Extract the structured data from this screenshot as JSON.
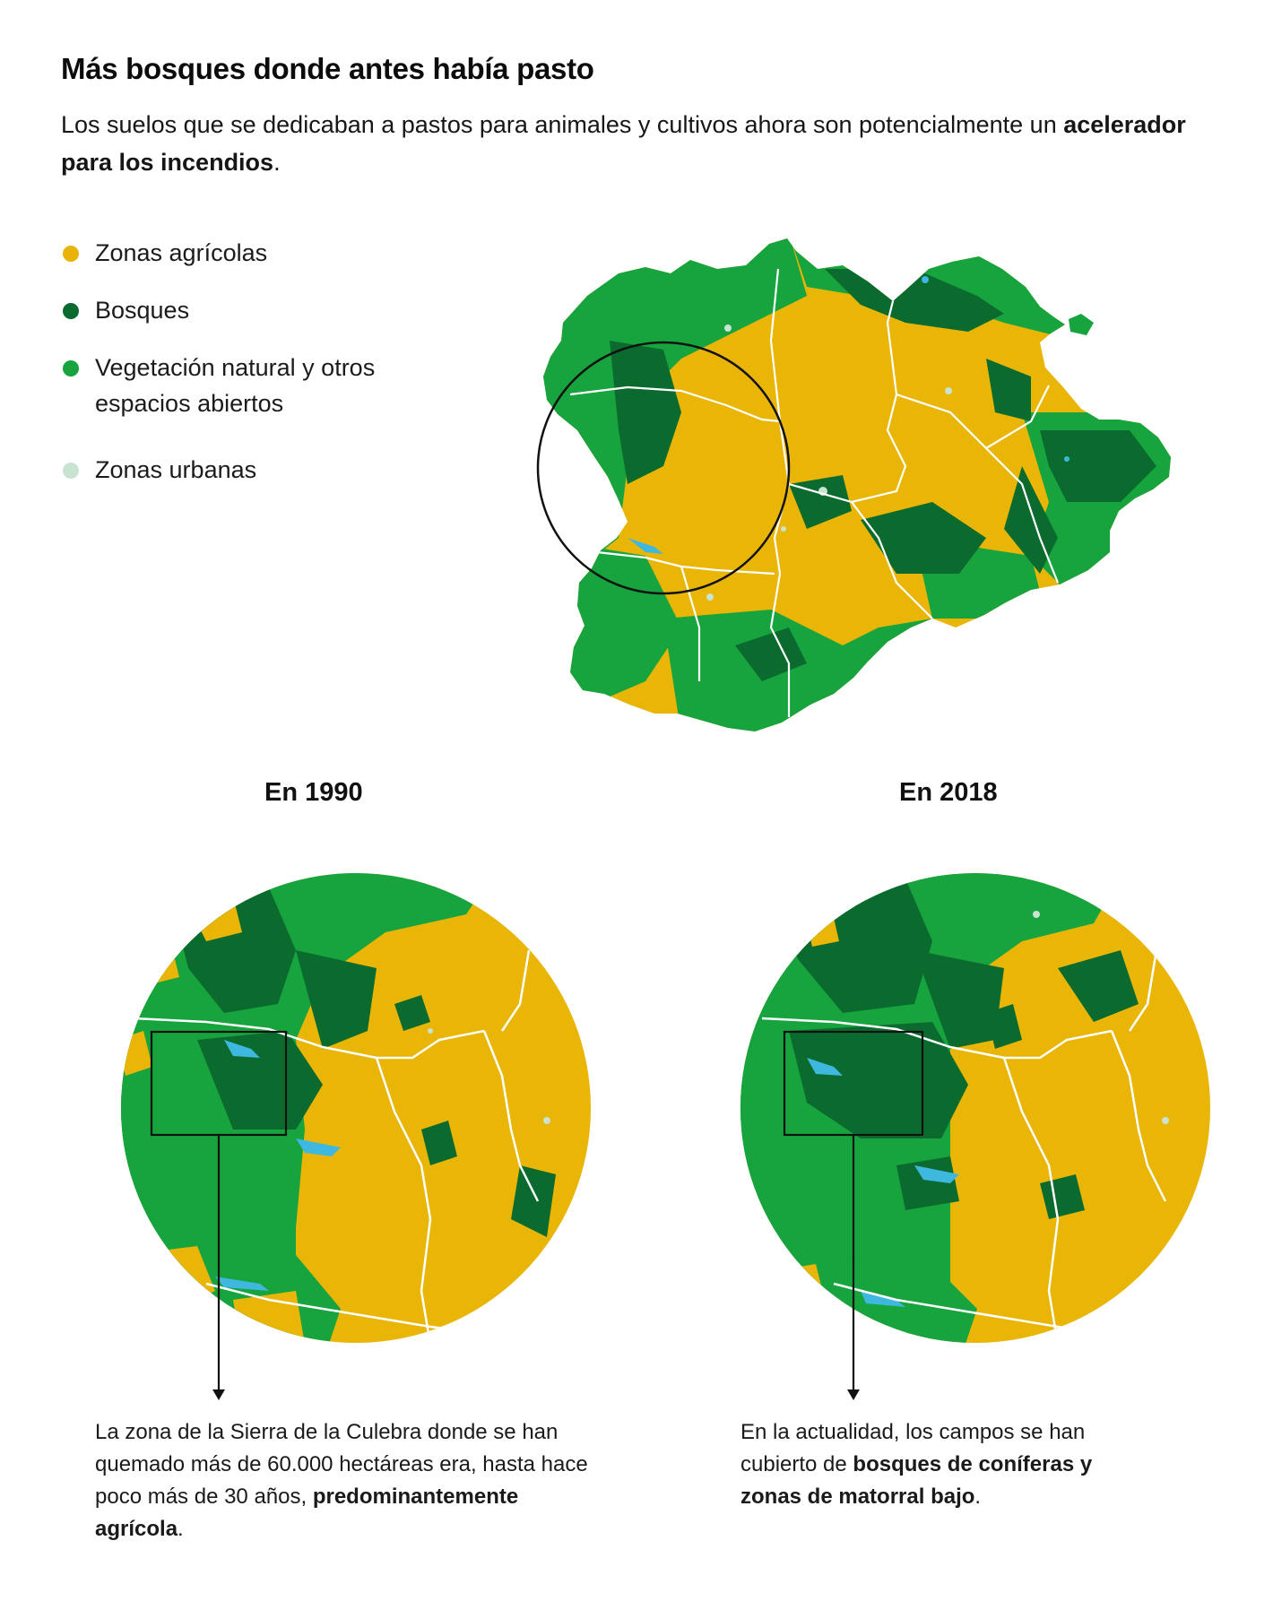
{
  "title": "Más bosques donde antes había pasto",
  "subtitle": {
    "text": "Los suelos que se dedicaban a pastos para animales y cultivos ahora son potencialmente un ",
    "bold": "acelerador para los incendios",
    "end": "."
  },
  "legend": [
    {
      "label": "Zonas agrícolas",
      "color": "#eab308"
    },
    {
      "label": "Bosques",
      "color": "#0b6b2e"
    },
    {
      "label": "Vegetación natural y otros espacios abiertos",
      "color": "#17a33d"
    },
    {
      "label": "Zonas urbanas",
      "color": "#c9e3d1"
    }
  ],
  "colors": {
    "agricola": "#e9b507",
    "bosque": "#0b6b2e",
    "vegetacion": "#17a33d",
    "urbana": "#c9e3d1",
    "agua": "#3fb8e0",
    "limites": "#ffffff"
  },
  "years": {
    "left": "En 1990",
    "right": "En 2018"
  },
  "notes": {
    "left": {
      "text": "La zona de la Sierra de la Culebra donde se han quemado más de 60.000 hectáreas era, hasta hace poco más de 30 años, ",
      "bold": "predominantemente agrícola",
      "end": "."
    },
    "right": {
      "text": "En la actualidad, los campos se han cubierto de ",
      "bold": "bosques de coníferas y zonas de matorral bajo",
      "end": "."
    }
  }
}
